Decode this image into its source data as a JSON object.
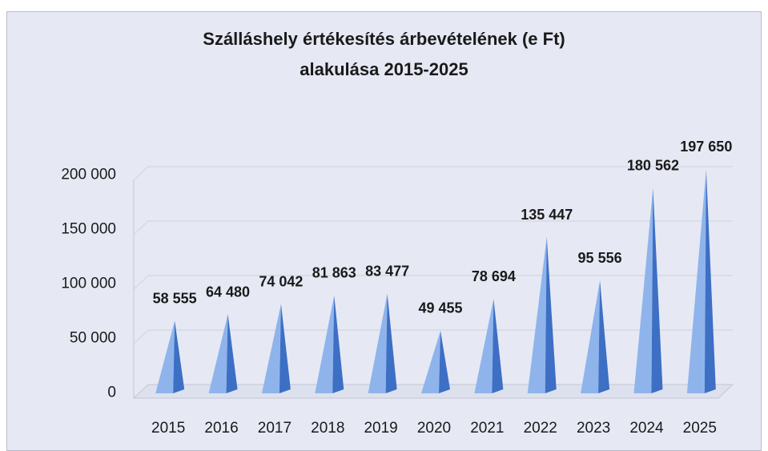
{
  "chart_data": {
    "type": "bar",
    "title_line1": "Szálláshely értékesítés árbevételének (e Ft)",
    "title_line2": "alakulása 2015-2025",
    "categories": [
      "2015",
      "2016",
      "2017",
      "2018",
      "2019",
      "2020",
      "2021",
      "2022",
      "2023",
      "2024",
      "2025"
    ],
    "values": [
      58555,
      64480,
      74042,
      81863,
      83477,
      49455,
      78694,
      135447,
      95556,
      180562,
      197650
    ],
    "data_labels": [
      "58 555",
      "64 480",
      "74 042",
      "81 863",
      "83 477",
      "49 455",
      "78 694",
      "135 447",
      "95 556",
      "180 562",
      "197 650"
    ],
    "y_ticks": [
      0,
      50000,
      100000,
      150000,
      200000
    ],
    "y_tick_labels": [
      "0",
      "50 000",
      "100 000",
      "150 000",
      "200 000"
    ],
    "ylim": [
      0,
      200000
    ],
    "xlabel": "",
    "ylabel": "",
    "grid": true,
    "bar_shape": "3d-pyramid",
    "colors": {
      "bar_light": "#8fb4ec",
      "bar_dark": "#3d6fc4",
      "grid": "#d2d5df",
      "background": "#e6e9f4"
    }
  }
}
